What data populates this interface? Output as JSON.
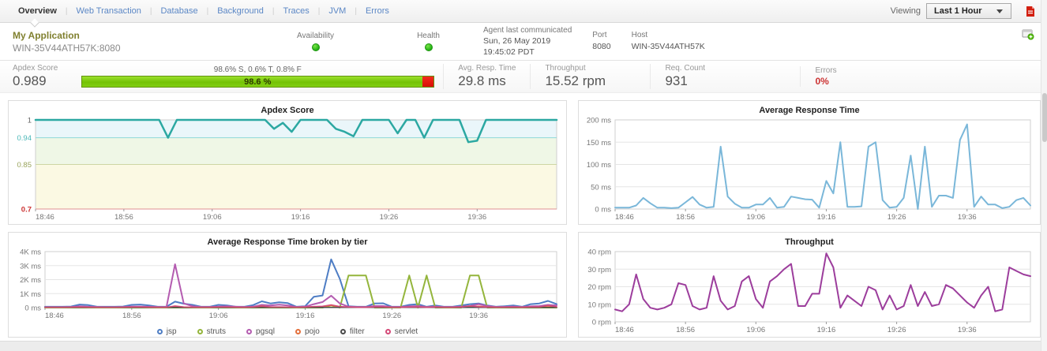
{
  "header": {
    "tabs": [
      "Overview",
      "Web Transaction",
      "Database",
      "Background",
      "Traces",
      "JVM",
      "Errors"
    ],
    "active_tab": "Overview",
    "viewing_label": "Viewing",
    "time_range": "Last 1 Hour"
  },
  "app_info": {
    "name": "My Application",
    "instance": "WIN-35V44ATH57K:8080",
    "availability_label": "Availability",
    "availability_status": "up",
    "health_label": "Health",
    "health_status": "up",
    "agent_label": "Agent last communicated",
    "agent_date": "Sun, 26 May 2019",
    "agent_time": "19:45:02 PDT",
    "port_label": "Port",
    "port_value": "8080",
    "host_label": "Host",
    "host_value": "WIN-35V44ATH57K"
  },
  "metrics": {
    "apdex_label": "Apdex Score",
    "apdex_value": "0.989",
    "bar_caption": "98.6% S, 0.6% T, 0.8% F",
    "bar_text": "98.6 %",
    "bar_green_pct": 97,
    "bar_red_pct": 3,
    "avg_resp_label": "Avg. Resp. Time",
    "avg_resp_value": "29.8 ms",
    "throughput_label": "Throughput",
    "throughput_value": "15.52 rpm",
    "req_count_label": "Req. Count",
    "req_count_value": "931",
    "errors_label": "Errors",
    "errors_value": "0%"
  },
  "colors": {
    "status_green": "#2fbe2f",
    "bar_green": "#7dc40f",
    "bar_red": "#e01414",
    "tab_blue": "#5b87c5",
    "error_red": "#cc3333"
  },
  "chart_data": [
    {
      "type": "line",
      "title": "Apdex Score",
      "xlabel": "",
      "ylabel": "",
      "ylim": [
        0.7,
        1.0
      ],
      "x_start": "18:46",
      "x_end": "19:45",
      "x_tick_labels": [
        "18:46",
        "18:56",
        "19:06",
        "19:16",
        "19:26",
        "19:36"
      ],
      "grid": true,
      "legend_position": "none",
      "yticks": [
        {
          "v": 1,
          "label": "1",
          "color": "#666666",
          "line_color": "none"
        },
        {
          "v": 0.94,
          "label": "0.94",
          "color": "#4ab8b8",
          "line_color": "#8fd8d8"
        },
        {
          "v": 0.85,
          "label": "0.85",
          "color": "#99a45c",
          "line_color": "#cdd6a3"
        },
        {
          "v": 0.7,
          "label": "0.7",
          "color": "#cc3333",
          "line_color": "#e09090",
          "bold": true
        }
      ],
      "bands": [
        {
          "from": 0.94,
          "to": 1.0,
          "color": "#eaf6fa"
        },
        {
          "from": 0.85,
          "to": 0.94,
          "color": "#eff7e6"
        },
        {
          "from": 0.7,
          "to": 0.85,
          "color": "#fbf9e3"
        }
      ],
      "series": [
        {
          "name": "apdex",
          "color": "#2ca8a2",
          "width": 2.5,
          "values": [
            1,
            1,
            1,
            1,
            1,
            1,
            1,
            1,
            1,
            1,
            1,
            1,
            1,
            1,
            1,
            0.94,
            1,
            1,
            1,
            1,
            1,
            1,
            1,
            1,
            1,
            1,
            1,
            0.97,
            0.99,
            0.96,
            1,
            1,
            1,
            1,
            0.97,
            0.96,
            0.945,
            1,
            1,
            1,
            1,
            0.955,
            1,
            1,
            0.94,
            1,
            1,
            1,
            1,
            0.925,
            0.93,
            1,
            1,
            1,
            1,
            1,
            1,
            1,
            1,
            1
          ]
        }
      ]
    },
    {
      "type": "line",
      "title": "Average Response Time",
      "xlabel": "",
      "ylabel": "ms",
      "ylim": [
        0,
        200
      ],
      "x_start": "18:46",
      "x_end": "19:45",
      "x_tick_labels": [
        "18:46",
        "18:56",
        "19:06",
        "19:16",
        "19:26",
        "19:36"
      ],
      "grid": true,
      "legend_position": "none",
      "yticks": [
        {
          "v": 0,
          "label": "0 ms",
          "color": "#777777",
          "line_color": "none"
        },
        {
          "v": 50,
          "label": "50 ms",
          "color": "#777777",
          "line_color": "#e5e5e5"
        },
        {
          "v": 100,
          "label": "100 ms",
          "color": "#777777",
          "line_color": "#e5e5e5"
        },
        {
          "v": 150,
          "label": "150 ms",
          "color": "#777777",
          "line_color": "#e5e5e5"
        },
        {
          "v": 200,
          "label": "200 ms",
          "color": "#777777",
          "line_color": "none"
        }
      ],
      "bands": [],
      "series": [
        {
          "name": "avg_response_time",
          "color": "#7ab7d9",
          "width": 2,
          "values": [
            3,
            3,
            3,
            8,
            25,
            13,
            3,
            3,
            2,
            3,
            15,
            27,
            10,
            3,
            5,
            140,
            28,
            12,
            3,
            3,
            10,
            10,
            25,
            3,
            5,
            28,
            25,
            22,
            21,
            3,
            63,
            35,
            150,
            5,
            5,
            6,
            140,
            150,
            20,
            3,
            5,
            25,
            120,
            0,
            140,
            5,
            30,
            30,
            25,
            155,
            190,
            5,
            28,
            10,
            10,
            2,
            5,
            20,
            25,
            8
          ]
        }
      ]
    },
    {
      "type": "line",
      "title": "Average Response Time broken by tier",
      "xlabel": "",
      "ylabel": "ms",
      "ylim": [
        0,
        4000
      ],
      "x_start": "18:46",
      "x_end": "19:45",
      "x_tick_labels": [
        "18:46",
        "18:56",
        "19:06",
        "19:16",
        "19:26",
        "19:36"
      ],
      "grid": true,
      "legend_position": "bottom",
      "yticks": [
        {
          "v": 0,
          "label": "0 ms",
          "color": "#777777",
          "line_color": "none"
        },
        {
          "v": 1000,
          "label": "1K ms",
          "color": "#777777",
          "line_color": "#e5e5e5"
        },
        {
          "v": 2000,
          "label": "2K ms",
          "color": "#777777",
          "line_color": "#e5e5e5"
        },
        {
          "v": 3000,
          "label": "3K ms",
          "color": "#777777",
          "line_color": "#e5e5e5"
        },
        {
          "v": 4000,
          "label": "4K ms",
          "color": "#777777",
          "line_color": "none"
        }
      ],
      "bands": [],
      "series": [
        {
          "name": "jsp",
          "color": "#4e7dc4",
          "width": 2,
          "values": [
            60,
            60,
            60,
            80,
            220,
            180,
            60,
            60,
            60,
            80,
            200,
            220,
            150,
            60,
            60,
            430,
            280,
            200,
            60,
            60,
            200,
            160,
            60,
            60,
            180,
            450,
            300,
            380,
            320,
            60,
            100,
            780,
            870,
            3450,
            2050,
            100,
            60,
            60,
            300,
            310,
            60,
            60,
            200,
            250,
            60,
            150,
            60,
            60,
            150,
            250,
            300,
            150,
            60,
            100,
            150,
            60,
            250,
            300,
            480,
            250
          ]
        },
        {
          "name": "struts",
          "color": "#94b53c",
          "width": 2,
          "values": [
            0,
            0,
            0,
            0,
            0,
            0,
            0,
            0,
            0,
            0,
            0,
            0,
            0,
            0,
            0,
            0,
            0,
            0,
            0,
            0,
            0,
            0,
            0,
            0,
            0,
            0,
            0,
            0,
            0,
            0,
            0,
            0,
            0,
            150,
            0,
            2300,
            2300,
            2300,
            0,
            0,
            0,
            0,
            2300,
            0,
            2300,
            0,
            0,
            0,
            0,
            2300,
            2300,
            0,
            0,
            0,
            0,
            0,
            0,
            0,
            0,
            0
          ]
        },
        {
          "name": "pgsql",
          "color": "#b45cb0",
          "width": 2,
          "values": [
            30,
            30,
            30,
            40,
            90,
            60,
            40,
            30,
            30,
            40,
            70,
            70,
            60,
            40,
            40,
            3100,
            300,
            100,
            40,
            40,
            70,
            90,
            60,
            40,
            70,
            200,
            160,
            210,
            160,
            40,
            70,
            250,
            400,
            850,
            300,
            70,
            40,
            40,
            110,
            110,
            40,
            40,
            90,
            110,
            40,
            70,
            40,
            40,
            70,
            110,
            250,
            110,
            40,
            50,
            70,
            40,
            90,
            110,
            200,
            160
          ]
        },
        {
          "name": "pojo",
          "color": "#e4703c",
          "width": 1.5,
          "values": [
            20,
            20,
            20,
            20,
            30,
            20,
            20,
            20,
            20,
            20,
            30,
            30,
            20,
            20,
            20,
            80,
            30,
            20,
            20,
            20,
            30,
            30,
            20,
            20,
            30,
            120,
            40,
            40,
            30,
            20,
            30,
            60,
            80,
            150,
            60,
            30,
            20,
            20,
            40,
            40,
            20,
            20,
            30,
            40,
            20,
            30,
            20,
            20,
            30,
            40,
            100,
            40,
            20,
            20,
            30,
            20,
            40,
            40,
            60,
            40
          ]
        },
        {
          "name": "filter",
          "color": "#4a4a4a",
          "width": 1.5,
          "values": [
            10,
            10,
            10,
            10,
            10,
            10,
            10,
            10,
            10,
            10,
            10,
            10,
            10,
            10,
            10,
            10,
            10,
            10,
            10,
            10,
            10,
            10,
            10,
            10,
            10,
            10,
            10,
            10,
            10,
            10,
            10,
            10,
            10,
            10,
            10,
            10,
            10,
            10,
            10,
            10,
            10,
            10,
            10,
            10,
            10,
            10,
            10,
            10,
            10,
            10,
            10,
            10,
            10,
            10,
            10,
            10,
            10,
            10,
            10,
            10
          ]
        },
        {
          "name": "servlet",
          "color": "#d44a78",
          "width": 1.5,
          "values": [
            25,
            25,
            25,
            30,
            40,
            30,
            25,
            25,
            25,
            30,
            40,
            40,
            30,
            25,
            25,
            120,
            50,
            30,
            25,
            25,
            40,
            40,
            30,
            25,
            40,
            100,
            50,
            50,
            40,
            25,
            40,
            80,
            100,
            200,
            80,
            40,
            25,
            25,
            50,
            50,
            25,
            25,
            40,
            50,
            25,
            40,
            25,
            25,
            40,
            120,
            60,
            40,
            25,
            30,
            40,
            25,
            50,
            50,
            150,
            60
          ]
        }
      ]
    },
    {
      "type": "line",
      "title": "Throughput",
      "xlabel": "",
      "ylabel": "rpm",
      "ylim": [
        0,
        40
      ],
      "x_start": "18:46",
      "x_end": "19:45",
      "x_tick_labels": [
        "18:46",
        "18:56",
        "19:06",
        "19:16",
        "19:26",
        "19:36"
      ],
      "grid": true,
      "legend_position": "none",
      "yticks": [
        {
          "v": 0,
          "label": "0 rpm",
          "color": "#777777",
          "line_color": "none"
        },
        {
          "v": 10,
          "label": "10 rpm",
          "color": "#777777",
          "line_color": "#e5e5e5"
        },
        {
          "v": 20,
          "label": "20 rpm",
          "color": "#777777",
          "line_color": "#e5e5e5"
        },
        {
          "v": 30,
          "label": "30 rpm",
          "color": "#777777",
          "line_color": "#e5e5e5"
        },
        {
          "v": 40,
          "label": "40 rpm",
          "color": "#777777",
          "line_color": "none"
        }
      ],
      "bands": [],
      "series": [
        {
          "name": "throughput",
          "color": "#9c3d9c",
          "width": 2,
          "values": [
            7,
            6,
            10,
            27,
            13,
            8,
            7,
            8,
            10,
            22,
            21,
            9,
            7,
            8,
            26,
            12,
            7,
            9,
            23,
            26,
            13,
            8,
            23,
            26,
            30,
            33,
            9,
            9,
            16,
            16,
            39,
            31,
            8,
            15,
            12,
            9,
            20,
            18,
            7,
            15,
            7,
            9,
            21,
            9,
            17,
            9,
            10,
            21,
            19,
            15,
            11,
            8,
            15,
            20,
            6,
            7,
            31,
            29,
            27,
            26
          ]
        }
      ]
    }
  ]
}
